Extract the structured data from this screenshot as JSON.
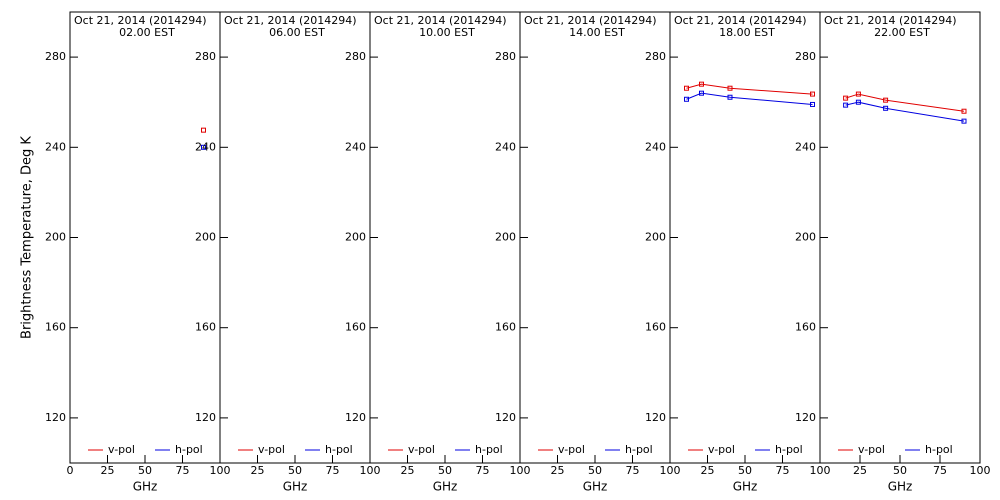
{
  "chart_data": [
    {
      "type": "line",
      "title": "Oct 21, 2014 (2014294)",
      "subtitle": "02.00 EST",
      "xlabel": "GHz",
      "ylabel": "Brightness Temperature, Deg K",
      "xlim": [
        0,
        100
      ],
      "ylim": [
        100,
        300
      ],
      "xticks": [
        0,
        25,
        50,
        75,
        100
      ],
      "yticks": [
        120,
        160,
        200,
        240,
        280
      ],
      "x": [
        89
      ],
      "series": [
        {
          "name": "v-pol",
          "color": "#e00000",
          "values": [
            247.6
          ]
        },
        {
          "name": "h-pol",
          "color": "#0000e0",
          "values": [
            240
          ]
        }
      ]
    },
    {
      "type": "line",
      "title": "Oct 21, 2014 (2014294)",
      "subtitle": "06.00 EST",
      "xlabel": "GHz",
      "xlim": [
        0,
        100
      ],
      "ylim": [
        100,
        300
      ],
      "xticks": [
        25,
        50,
        75,
        100
      ],
      "yticks": [
        120,
        160,
        200,
        240,
        280
      ],
      "x": [],
      "series": [
        {
          "name": "v-pol",
          "color": "#e00000",
          "values": []
        },
        {
          "name": "h-pol",
          "color": "#0000e0",
          "values": []
        }
      ]
    },
    {
      "type": "line",
      "title": "Oct 21, 2014 (2014294)",
      "subtitle": "10.00 EST",
      "xlabel": "GHz",
      "xlim": [
        0,
        100
      ],
      "ylim": [
        100,
        300
      ],
      "xticks": [
        25,
        50,
        75,
        100
      ],
      "yticks": [
        120,
        160,
        200,
        240,
        280
      ],
      "x": [],
      "series": [
        {
          "name": "v-pol",
          "color": "#e00000",
          "values": []
        },
        {
          "name": "h-pol",
          "color": "#0000e0",
          "values": []
        }
      ]
    },
    {
      "type": "line",
      "title": "Oct 21, 2014 (2014294)",
      "subtitle": "14.00 EST",
      "xlabel": "GHz",
      "xlim": [
        0,
        100
      ],
      "ylim": [
        100,
        300
      ],
      "xticks": [
        25,
        50,
        75,
        100
      ],
      "yticks": [
        120,
        160,
        200,
        240,
        280
      ],
      "x": [],
      "series": [
        {
          "name": "v-pol",
          "color": "#e00000",
          "values": []
        },
        {
          "name": "h-pol",
          "color": "#0000e0",
          "values": []
        }
      ]
    },
    {
      "type": "line",
      "title": "Oct 21, 2014 (2014294)",
      "subtitle": "18.00 EST",
      "xlabel": "GHz",
      "xlim": [
        0,
        100
      ],
      "ylim": [
        100,
        300
      ],
      "xticks": [
        25,
        50,
        75,
        100
      ],
      "yticks": [
        120,
        160,
        200,
        240,
        280
      ],
      "x": [
        11,
        21,
        40,
        95
      ],
      "series": [
        {
          "name": "v-pol",
          "color": "#e00000",
          "values": [
            266.2,
            268,
            266.2,
            263.6
          ]
        },
        {
          "name": "h-pol",
          "color": "#0000e0",
          "values": [
            261.3,
            264,
            262.2,
            259
          ]
        }
      ]
    },
    {
      "type": "line",
      "title": "Oct 21, 2014 (2014294)",
      "subtitle": "22.00 EST",
      "xlabel": "GHz",
      "xlim": [
        0,
        100
      ],
      "ylim": [
        100,
        300
      ],
      "xticks": [
        25,
        50,
        75,
        100
      ],
      "yticks": [
        120,
        160,
        200,
        240,
        280
      ],
      "x": [
        16,
        24,
        41,
        90
      ],
      "series": [
        {
          "name": "v-pol",
          "color": "#e00000",
          "values": [
            261.8,
            263.6,
            260.9,
            256
          ]
        },
        {
          "name": "h-pol",
          "color": "#0000e0",
          "values": [
            258.7,
            260,
            257.3,
            251.6
          ]
        }
      ]
    }
  ]
}
